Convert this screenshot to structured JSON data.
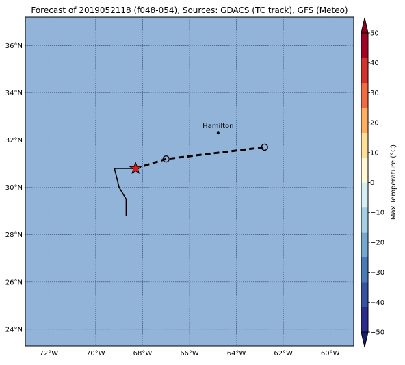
{
  "title": "Forecast of 2019052118 (f048-054), Sources: GDACS (TC track), GFS (Meteo)",
  "map": {
    "lon_range": [
      -73.0,
      -59.0
    ],
    "lat_range": [
      23.3,
      37.2
    ],
    "ocean_color": "#92b4d9",
    "grid": true,
    "lon_ticks": [
      {
        "value": -72,
        "label": "72°W"
      },
      {
        "value": -70,
        "label": "70°W"
      },
      {
        "value": -68,
        "label": "68°W"
      },
      {
        "value": -66,
        "label": "66°W"
      },
      {
        "value": -64,
        "label": "64°W"
      },
      {
        "value": -62,
        "label": "62°W"
      },
      {
        "value": -60,
        "label": "60°W"
      }
    ],
    "lat_ticks": [
      {
        "value": 24,
        "label": "24°N"
      },
      {
        "value": 26,
        "label": "26°N"
      },
      {
        "value": 28,
        "label": "28°N"
      },
      {
        "value": 30,
        "label": "30°N"
      },
      {
        "value": 32,
        "label": "32°N"
      },
      {
        "value": 34,
        "label": "34°N"
      },
      {
        "value": 36,
        "label": "36°N"
      }
    ]
  },
  "city": {
    "name": "Hamilton",
    "lon": -64.78,
    "lat": 32.3
  },
  "observed_track": [
    {
      "lon": -68.7,
      "lat": 28.8
    },
    {
      "lon": -68.7,
      "lat": 29.5
    },
    {
      "lon": -69.0,
      "lat": 30.0
    },
    {
      "lon": -69.2,
      "lat": 30.8
    },
    {
      "lon": -68.3,
      "lat": 30.8
    }
  ],
  "current_position": {
    "lon": -68.3,
    "lat": 30.8
  },
  "forecast_track": [
    {
      "lon": -68.3,
      "lat": 30.8
    },
    {
      "lon": -67.0,
      "lat": 31.2
    },
    {
      "lon": -62.8,
      "lat": 31.7
    }
  ],
  "forecast_points": [
    {
      "lon": -67.0,
      "lat": 31.2
    },
    {
      "lon": -62.8,
      "lat": 31.7
    }
  ],
  "colorbar": {
    "label": "Max Temperature (°C)",
    "min": -50,
    "max": 50,
    "step": 10,
    "tick_labels": [
      "−50",
      "−40",
      "−30",
      "−20",
      "−10",
      "0",
      "10",
      "20",
      "30",
      "40",
      "50"
    ],
    "colors": [
      "#2a2b8c",
      "#3653a0",
      "#4a7bb7",
      "#76a7cf",
      "#a6cfe4",
      "#d6eef5",
      "#fff9d7",
      "#fee199",
      "#fdaf62",
      "#f26b43",
      "#d4322c",
      "#a50026"
    ],
    "under_color": "#181d6e",
    "over_color": "#8a0024"
  }
}
